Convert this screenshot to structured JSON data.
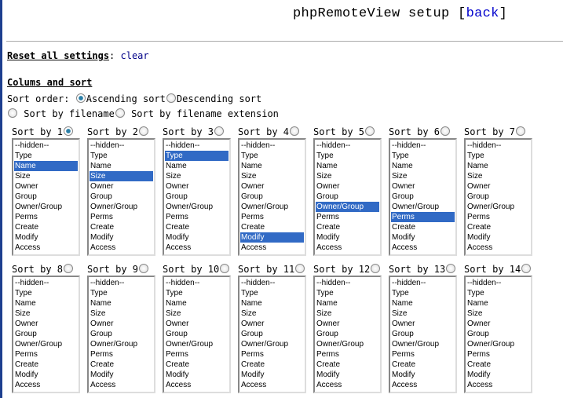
{
  "header": {
    "title": "phpRemoteView setup",
    "back_label": "back"
  },
  "reset": {
    "label": "Reset all settings",
    "link": "clear"
  },
  "columns": {
    "heading": "Colums and sort",
    "sort_order_label": "Sort order:",
    "ascending": "Ascending sort",
    "descending": "Descending sort",
    "by_filename": "Sort by filename",
    "by_extension": "Sort by filename extension",
    "checked_order": "ascending",
    "checked_sort_mode": "none"
  },
  "options": [
    "--hidden--",
    "Type",
    "Name",
    "Size",
    "Owner",
    "Group",
    "Owner/Group",
    "Perms",
    "Create",
    "Modify",
    "Access"
  ],
  "sorts": [
    {
      "label": "Sort by 1",
      "checked": true,
      "selected": "Name"
    },
    {
      "label": "Sort by 2",
      "checked": false,
      "selected": "Size"
    },
    {
      "label": "Sort by 3",
      "checked": false,
      "selected": "Type"
    },
    {
      "label": "Sort by 4",
      "checked": false,
      "selected": "Modify"
    },
    {
      "label": "Sort by 5",
      "checked": false,
      "selected": "Owner/Group"
    },
    {
      "label": "Sort by 6",
      "checked": false,
      "selected": "Perms"
    },
    {
      "label": "Sort by 7",
      "checked": false,
      "selected": null
    },
    {
      "label": "Sort by 8",
      "checked": false,
      "selected": null
    },
    {
      "label": "Sort by 9",
      "checked": false,
      "selected": null
    },
    {
      "label": "Sort by 10",
      "checked": false,
      "selected": null
    },
    {
      "label": "Sort by 11",
      "checked": false,
      "selected": null
    },
    {
      "label": "Sort by 12",
      "checked": false,
      "selected": null
    },
    {
      "label": "Sort by 13",
      "checked": false,
      "selected": null
    },
    {
      "label": "Sort by 14",
      "checked": false,
      "selected": null
    }
  ],
  "colors": {
    "selection": "#316ac5",
    "link": "#0000cc"
  }
}
